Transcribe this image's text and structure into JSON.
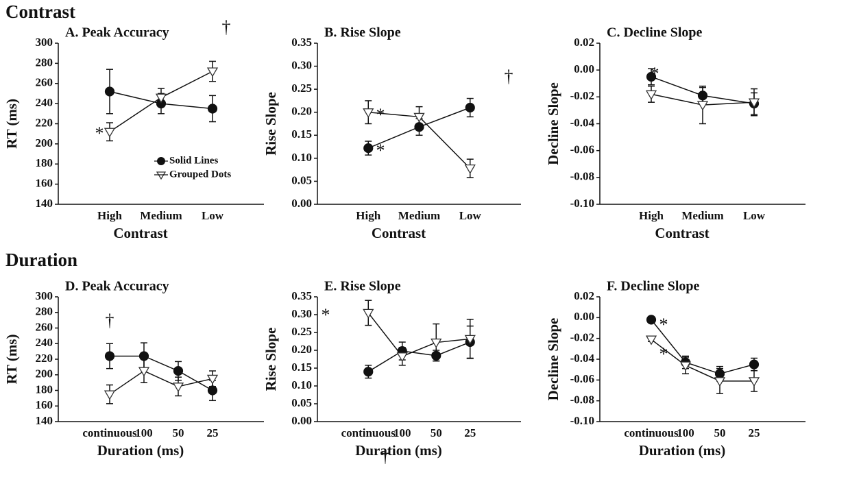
{
  "section_titles": [
    "Contrast",
    "Duration"
  ],
  "chart_data": [
    {
      "type": "line",
      "title": "A. Peak Accuracy",
      "xlabel": "Contrast",
      "ylabel": "RT (ms)",
      "categories": [
        "High",
        "Medium",
        "Low"
      ],
      "series": [
        {
          "name": "Solid Lines",
          "color": "#111111",
          "marker": "circle",
          "values": [
            252,
            240,
            235
          ],
          "errors": [
            22,
            10,
            13
          ]
        },
        {
          "name": "Grouped Dots",
          "color": "#ffffff",
          "marker": "triangle-down",
          "values": [
            212,
            246,
            272
          ],
          "errors": [
            9,
            9,
            10
          ]
        }
      ],
      "ylim": [
        140,
        300
      ],
      "yticks": [
        140,
        160,
        180,
        200,
        220,
        240,
        260,
        280,
        300
      ],
      "annotations": [
        "*",
        "†"
      ]
    },
    {
      "type": "line",
      "title": "B. Rise Slope",
      "xlabel": "Contrast",
      "ylabel": "Rise Slope",
      "categories": [
        "High",
        "Medium",
        "Low"
      ],
      "series": [
        {
          "color": "#111111",
          "marker": "circle",
          "values": [
            0.122,
            0.168,
            0.21
          ],
          "errors": [
            0.015,
            0.018,
            0.02
          ]
        },
        {
          "color": "#ffffff",
          "marker": "triangle-down",
          "values": [
            0.2,
            0.19,
            0.078
          ],
          "errors": [
            0.025,
            0.022,
            0.02
          ]
        }
      ],
      "ylim": [
        0,
        0.35
      ],
      "yticks": [
        {
          "value": 0,
          "label": "0.00"
        },
        0.05,
        {
          "value": 0.1,
          "label": "0.10"
        },
        0.15,
        {
          "value": 0.2,
          "label": "0.20"
        },
        0.25,
        {
          "value": 0.3,
          "label": "0.30"
        },
        0.35
      ],
      "annotations": [
        "*",
        "*",
        "†"
      ]
    },
    {
      "type": "line",
      "title": "C. Decline Slope",
      "xlabel": "Contrast",
      "ylabel": "Decline Slope",
      "categories": [
        "High",
        "Medium",
        "Low"
      ],
      "series": [
        {
          "color": "#111111",
          "marker": "circle",
          "values": [
            -0.005,
            -0.019,
            -0.025
          ],
          "errors": [
            0.006,
            0.006,
            0.008
          ]
        },
        {
          "color": "#ffffff",
          "marker": "triangle-down",
          "values": [
            -0.018,
            -0.026,
            -0.024
          ],
          "errors": [
            0.006,
            0.014,
            0.01
          ]
        }
      ],
      "ylim": [
        -0.1,
        0.02
      ],
      "yticks": [
        {
          "value": -0.1,
          "label": "-0.10"
        },
        -0.08,
        -0.06,
        -0.04,
        -0.02,
        {
          "value": 0,
          "label": "0.00"
        },
        0.02
      ],
      "annotations": [
        "*"
      ]
    },
    {
      "type": "line",
      "title": "D. Peak Accuracy",
      "xlabel": "Duration (ms)",
      "ylabel": "RT (ms)",
      "categories": [
        "continuous",
        "100",
        "50",
        "25"
      ],
      "series": [
        {
          "color": "#111111",
          "marker": "circle",
          "values": [
            224,
            224,
            205,
            180
          ],
          "errors": [
            16,
            17,
            12,
            13
          ]
        },
        {
          "color": "#ffffff",
          "marker": "triangle-down",
          "values": [
            175,
            205,
            185,
            195
          ],
          "errors": [
            12,
            15,
            12,
            10
          ]
        }
      ],
      "ylim": [
        140,
        300
      ],
      "yticks": [
        140,
        160,
        180,
        200,
        220,
        240,
        260,
        280,
        300
      ],
      "annotations": [
        "†"
      ]
    },
    {
      "type": "line",
      "title": "E. Rise Slope",
      "xlabel": "Duration (ms)",
      "ylabel": "Rise Slope",
      "categories": [
        "continuous",
        "100",
        "50",
        "25"
      ],
      "series": [
        {
          "color": "#111111",
          "marker": "circle",
          "values": [
            0.14,
            0.198,
            0.185,
            0.223
          ],
          "errors": [
            0.018,
            0.025,
            0.015,
            0.045
          ]
        },
        {
          "color": "#ffffff",
          "marker": "triangle-down",
          "values": [
            0.305,
            0.183,
            0.222,
            0.232
          ],
          "errors": [
            0.035,
            0.025,
            0.052,
            0.055
          ]
        }
      ],
      "ylim": [
        0,
        0.35
      ],
      "yticks": [
        {
          "value": 0,
          "label": "0.00"
        },
        0.05,
        {
          "value": 0.1,
          "label": "0.10"
        },
        0.15,
        {
          "value": 0.2,
          "label": "0.20"
        },
        0.25,
        {
          "value": 0.3,
          "label": "0.30"
        },
        0.35
      ],
      "annotations": [
        "*",
        "†"
      ]
    },
    {
      "type": "line",
      "title": "F. Decline Slope",
      "xlabel": "Duration (ms)",
      "ylabel": "Decline Slope",
      "categories": [
        "continuous",
        "100",
        "50",
        "25"
      ],
      "series": [
        {
          "color": "#111111",
          "marker": "circle",
          "values": [
            -0.002,
            -0.043,
            -0.054,
            -0.045
          ],
          "errors": [
            0.003,
            0.006,
            0.007,
            0.006
          ]
        },
        {
          "color": "#ffffff",
          "marker": "triangle-down",
          "values": [
            -0.021,
            -0.046,
            -0.061,
            -0.061
          ],
          "errors": [
            0.002,
            0.008,
            0.012,
            0.01
          ]
        }
      ],
      "ylim": [
        -0.1,
        0.02
      ],
      "yticks": [
        {
          "value": -0.1,
          "label": "-0.10"
        },
        -0.08,
        -0.06,
        -0.04,
        -0.02,
        {
          "value": 0,
          "label": "0.00"
        },
        0.02
      ],
      "annotations": [
        "*",
        "*"
      ]
    }
  ]
}
